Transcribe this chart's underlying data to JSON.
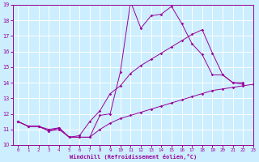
{
  "xlabel": "Windchill (Refroidissement éolien,°C)",
  "xlim": [
    -0.5,
    23
  ],
  "ylim": [
    10,
    19
  ],
  "yticks": [
    10,
    11,
    12,
    13,
    14,
    15,
    16,
    17,
    18,
    19
  ],
  "xticks": [
    0,
    1,
    2,
    3,
    4,
    5,
    6,
    7,
    8,
    9,
    10,
    11,
    12,
    13,
    14,
    15,
    16,
    17,
    18,
    19,
    20,
    21,
    22,
    23
  ],
  "bg_color": "#cceeff",
  "line_color": "#990099",
  "grid_color": "#ffffff",
  "line1_y": [
    11.5,
    11.2,
    11.2,
    10.9,
    11.1,
    10.5,
    10.5,
    10.5,
    11.9,
    12.0,
    14.7,
    19.2,
    17.5,
    18.3,
    18.4,
    18.9,
    17.8,
    16.5,
    15.8,
    14.5,
    14.5,
    14.0,
    13.9
  ],
  "line1_x": [
    0,
    1,
    2,
    3,
    4,
    5,
    6,
    7,
    8,
    9,
    10,
    11,
    12,
    13,
    14,
    15,
    16,
    17,
    18,
    19,
    20,
    21,
    22
  ],
  "line2_y": [
    11.5,
    11.2,
    11.2,
    11.0,
    11.1,
    10.5,
    10.6,
    11.5,
    12.2,
    13.3,
    13.8,
    14.6,
    15.1,
    15.5,
    15.9,
    16.3,
    16.7,
    17.1,
    17.4,
    15.9,
    14.5,
    14.0,
    14.0
  ],
  "line2_x": [
    0,
    1,
    2,
    3,
    4,
    5,
    6,
    7,
    8,
    9,
    10,
    11,
    12,
    13,
    14,
    15,
    16,
    17,
    18,
    19,
    20,
    21,
    22
  ],
  "line3_y": [
    11.5,
    11.2,
    11.2,
    10.9,
    11.0,
    10.5,
    10.5,
    10.5,
    11.0,
    11.4,
    11.7,
    11.9,
    12.1,
    12.3,
    12.5,
    12.7,
    12.9,
    13.1,
    13.3,
    13.5,
    13.6,
    13.7,
    13.8,
    13.9
  ],
  "line3_x": [
    0,
    1,
    2,
    3,
    4,
    5,
    6,
    7,
    8,
    9,
    10,
    11,
    12,
    13,
    14,
    15,
    16,
    17,
    18,
    19,
    20,
    21,
    22,
    23
  ]
}
